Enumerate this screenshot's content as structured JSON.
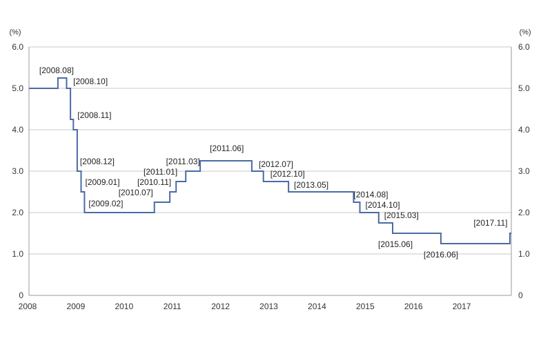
{
  "chart_data": {
    "type": "line",
    "step": true,
    "title": "",
    "xlabel": "",
    "ylabel": "",
    "y_unit_left": "(%)",
    "y_unit_right": "(%)",
    "xlim": [
      2008.0,
      2018.0
    ],
    "ylim": [
      0,
      6.0
    ],
    "x_ticks": [
      "2008",
      "2009",
      "2010",
      "2011",
      "2012",
      "2013",
      "2014",
      "2015",
      "2016",
      "2017"
    ],
    "y_ticks": [
      "0",
      "1.0",
      "2.0",
      "3.0",
      "4.0",
      "5.0",
      "6.0"
    ],
    "grid": true,
    "legend": "none",
    "colors": {
      "line": "#4a6aa5",
      "grid": "#c8c8c8",
      "axis": "#999999"
    },
    "series": [
      {
        "x": [
          2008.0,
          2008.6,
          2008.78,
          2008.86,
          2008.92,
          2009.0,
          2009.08,
          2009.15,
          2010.6,
          2010.92,
          2011.05,
          2011.25,
          2011.55,
          2012.62,
          2012.86,
          2013.38,
          2014.73,
          2014.86,
          2015.25,
          2015.54,
          2016.54,
          2017.97,
          2018.0
        ],
        "y": [
          5.0,
          5.25,
          5.0,
          4.25,
          4.0,
          3.0,
          2.5,
          2.0,
          2.25,
          2.5,
          2.75,
          3.0,
          3.25,
          3.0,
          2.75,
          2.5,
          2.25,
          2.0,
          1.75,
          1.5,
          1.25,
          1.5,
          1.5
        ]
      }
    ],
    "annotations": [
      {
        "text": "[2008.08]",
        "x": 2008.6,
        "y": 5.25
      },
      {
        "text": "[2008.10]",
        "x": 2008.86,
        "y": 5.0
      },
      {
        "text": "[2008.11]",
        "x": 2008.92,
        "y": 4.25
      },
      {
        "text": "[2008.12]",
        "x": 2009.0,
        "y": 3.0
      },
      {
        "text": "[2009.01]",
        "x": 2009.08,
        "y": 2.5
      },
      {
        "text": "[2009.02]",
        "x": 2009.15,
        "y": 2.0
      },
      {
        "text": "[2010.07]",
        "x": 2010.6,
        "y": 2.25
      },
      {
        "text": "[2010.11]",
        "x": 2010.92,
        "y": 2.5
      },
      {
        "text": "[2011.01]",
        "x": 2011.05,
        "y": 2.75
      },
      {
        "text": "[2011.03]",
        "x": 2011.25,
        "y": 3.0
      },
      {
        "text": "[2011.06]",
        "x": 2011.55,
        "y": 3.25
      },
      {
        "text": "[2012.07]",
        "x": 2012.62,
        "y": 3.0
      },
      {
        "text": "[2012.10]",
        "x": 2012.86,
        "y": 2.75
      },
      {
        "text": "[2013.05]",
        "x": 2013.38,
        "y": 2.5
      },
      {
        "text": "[2014.08]",
        "x": 2014.73,
        "y": 2.25
      },
      {
        "text": "[2014.10]",
        "x": 2014.86,
        "y": 2.0
      },
      {
        "text": "[2015.03]",
        "x": 2015.25,
        "y": 1.75
      },
      {
        "text": "[2015.06]",
        "x": 2015.54,
        "y": 1.5
      },
      {
        "text": "[2016.06]",
        "x": 2016.54,
        "y": 1.25
      },
      {
        "text": "[2017.11]",
        "x": 2017.97,
        "y": 1.5
      }
    ]
  }
}
